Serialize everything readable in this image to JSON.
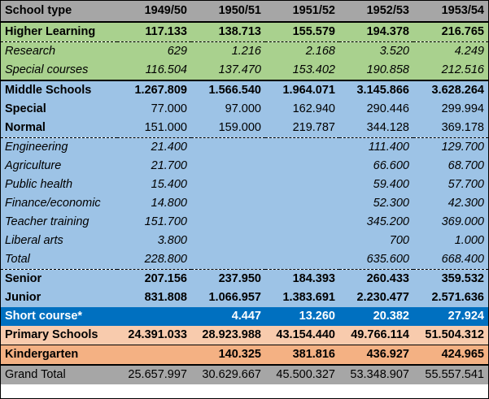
{
  "header": {
    "label": "School type",
    "years": [
      "1949/50",
      "1950/51",
      "1951/52",
      "1952/53",
      "1953/54"
    ]
  },
  "rows": [
    {
      "label": "Higher Learning",
      "values": [
        "117.133",
        "138.713",
        "155.579",
        "194.378",
        "216.765"
      ]
    },
    {
      "label": "Research",
      "values": [
        "629",
        "1.216",
        "2.168",
        "3.520",
        "4.249"
      ]
    },
    {
      "label": "Special courses",
      "values": [
        "116.504",
        "137.470",
        "153.402",
        "190.858",
        "212.516"
      ]
    },
    {
      "label": "Middle Schools",
      "values": [
        "1.267.809",
        "1.566.540",
        "1.964.071",
        "3.145.866",
        "3.628.264"
      ]
    },
    {
      "label": "Special",
      "values": [
        "77.000",
        "97.000",
        "162.940",
        "290.446",
        "299.994"
      ]
    },
    {
      "label": "Normal",
      "values": [
        "151.000",
        "159.000",
        "219.787",
        "344.128",
        "369.178"
      ]
    },
    {
      "label": "Engineering",
      "values": [
        "21.400",
        "",
        "",
        "111.400",
        "129.700"
      ]
    },
    {
      "label": "Agriculture",
      "values": [
        "21.700",
        "",
        "",
        "66.600",
        "68.700"
      ]
    },
    {
      "label": "Public health",
      "values": [
        "15.400",
        "",
        "",
        "59.400",
        "57.700"
      ]
    },
    {
      "label": "Finance/economic",
      "values": [
        "14.800",
        "",
        "",
        "52.300",
        "42.300"
      ]
    },
    {
      "label": "Teacher training",
      "values": [
        "151.700",
        "",
        "",
        "345.200",
        "369.000"
      ]
    },
    {
      "label": "Liberal arts",
      "values": [
        "3.800",
        "",
        "",
        "700",
        "1.000"
      ]
    },
    {
      "label": "Total",
      "values": [
        "228.800",
        "",
        "",
        "635.600",
        "668.400"
      ]
    },
    {
      "label": "Senior",
      "values": [
        "207.156",
        "237.950",
        "184.393",
        "260.433",
        "359.532"
      ]
    },
    {
      "label": "Junior",
      "values": [
        "831.808",
        "1.066.957",
        "1.383.691",
        "2.230.477",
        "2.571.636"
      ]
    },
    {
      "label": "Short course*",
      "values": [
        "",
        "4.447",
        "13.260",
        "20.382",
        "27.924"
      ]
    },
    {
      "label": "Primary Schools",
      "values": [
        "24.391.033",
        "28.923.988",
        "43.154.440",
        "49.766.114",
        "51.504.312"
      ]
    },
    {
      "label": "Kindergarten",
      "values": [
        "",
        "140.325",
        "381.816",
        "436.927",
        "424.965"
      ]
    },
    {
      "label": "Grand Total",
      "values": [
        "25.657.997",
        "30.629.667",
        "45.500.327",
        "53.348.907",
        "55.557.541"
      ]
    }
  ]
}
